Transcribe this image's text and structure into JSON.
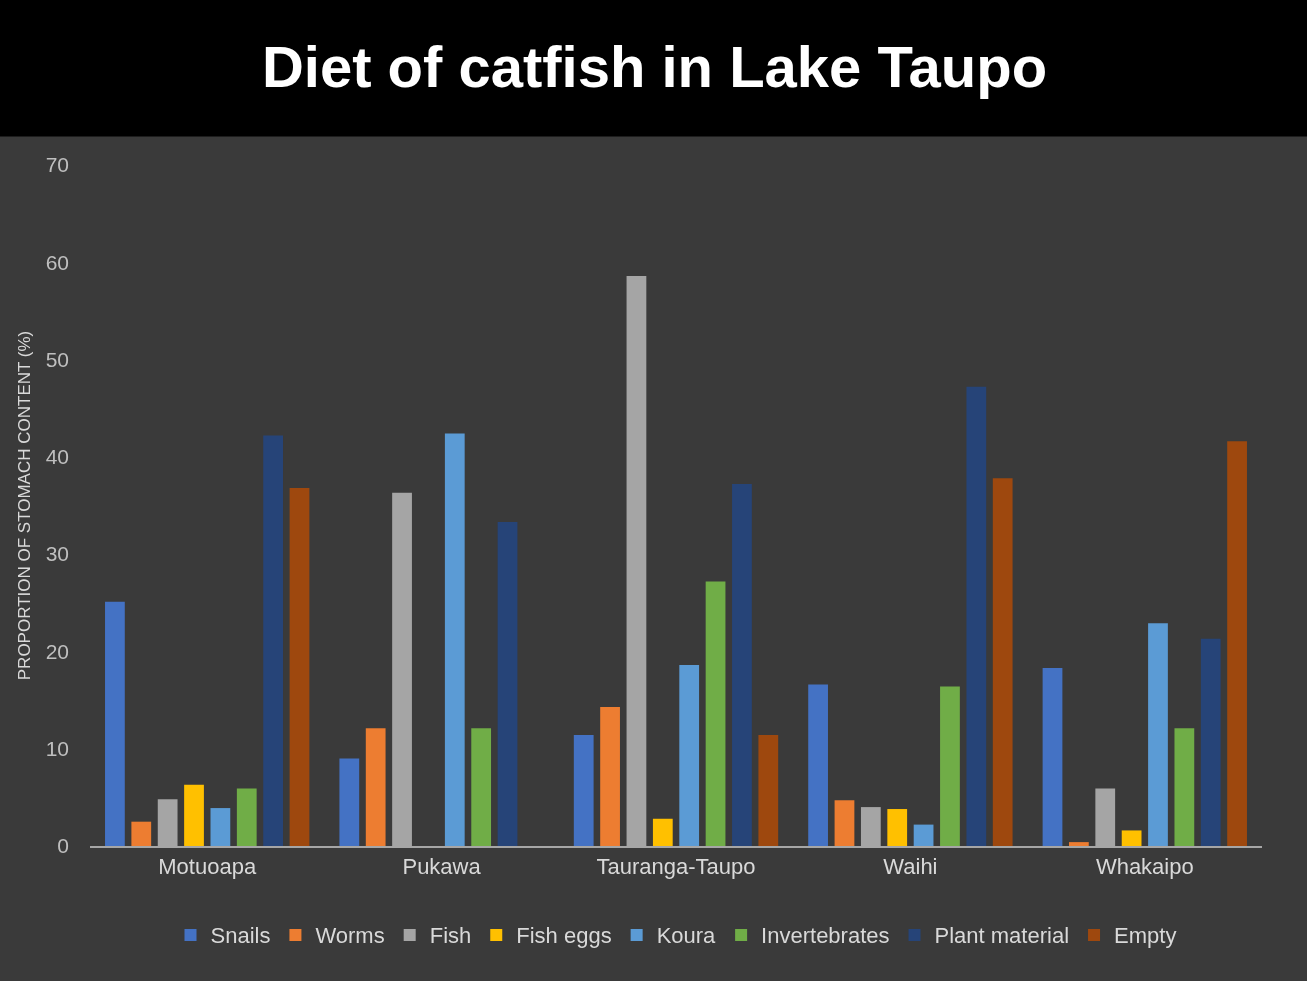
{
  "chart_data": {
    "type": "bar",
    "title": "Diet of catfish in Lake Taupo",
    "ylabel": "PROPORTION OF STOMACH CONTENT (%)",
    "categories": [
      "Motuoapa",
      "Pukawa",
      "Tauranga-Taupo",
      "Waihi",
      "Whakaipo"
    ],
    "series": [
      {
        "name": "Snails",
        "color": "#4472c4",
        "values": [
          25.1,
          9.0,
          11.4,
          16.6,
          18.3
        ]
      },
      {
        "name": "Worms",
        "color": "#ed7d31",
        "values": [
          2.5,
          12.1,
          14.3,
          4.7,
          0.4
        ]
      },
      {
        "name": "Fish",
        "color": "#a5a5a5",
        "values": [
          4.8,
          36.3,
          58.6,
          4.0,
          5.9
        ]
      },
      {
        "name": "Fish eggs",
        "color": "#ffc000",
        "values": [
          6.3,
          0,
          2.8,
          3.8,
          1.6
        ]
      },
      {
        "name": "Koura",
        "color": "#5b9bd5",
        "values": [
          3.9,
          42.4,
          18.6,
          2.2,
          22.9
        ]
      },
      {
        "name": "Invertebrates",
        "color": "#70ad47",
        "values": [
          5.9,
          12.1,
          27.2,
          16.4,
          12.1
        ]
      },
      {
        "name": "Plant material",
        "color": "#264478",
        "values": [
          42.2,
          33.3,
          37.2,
          47.2,
          21.3
        ]
      },
      {
        "name": "Empty",
        "color": "#9e480e",
        "values": [
          36.8,
          0,
          11.4,
          37.8,
          41.6
        ]
      }
    ],
    "ylim": [
      0,
      70
    ],
    "yticks": [
      0,
      10,
      20,
      30,
      40,
      50,
      60,
      70
    ],
    "grid": false,
    "legend": "bottom"
  }
}
